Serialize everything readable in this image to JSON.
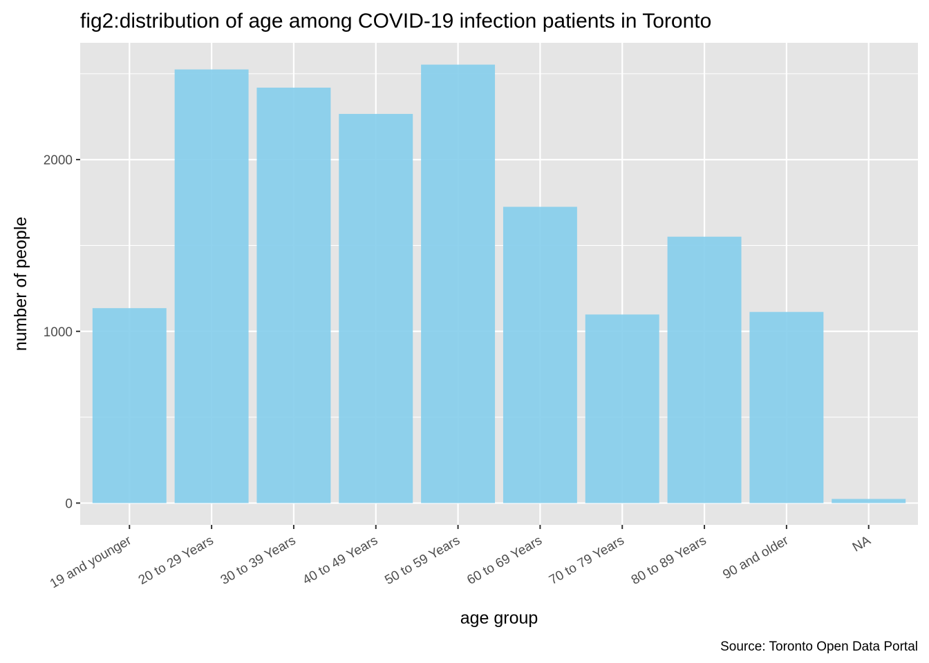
{
  "chart_data": {
    "type": "bar",
    "title": "fig2:distribution of age among COVID-19 infection patients in Toronto",
    "xlabel": "age group",
    "ylabel": "number of people",
    "caption": "Source: Toronto Open Data Portal",
    "categories": [
      "19 and younger",
      "20 to 29 Years",
      "30 to 39 Years",
      "40 to 49 Years",
      "50 to 59 Years",
      "60 to 69 Years",
      "70 to 79 Years",
      "80 to 89 Years",
      "90 and older",
      "NA"
    ],
    "values": [
      1135,
      2525,
      2419,
      2266,
      2553,
      1725,
      1098,
      1551,
      1113,
      24
    ],
    "ylim": [
      -127,
      2680
    ],
    "yticks": [
      0,
      1000,
      2000
    ],
    "ytick_labels": [
      "0",
      "1000",
      "2000"
    ],
    "grid": true,
    "colors": {
      "bar": "#87CEEB",
      "panel": "#E5E5E5",
      "grid": "#FFFFFF"
    }
  }
}
